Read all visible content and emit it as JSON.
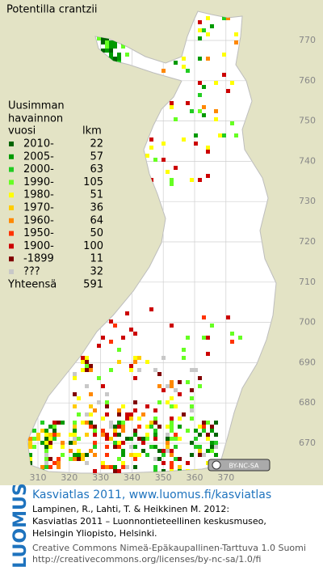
{
  "title": "Potentilla crantzii",
  "legend": {
    "heading": [
      "Uusimman",
      "havainnon"
    ],
    "col_year": "vuosi",
    "col_count": "lkm",
    "items": [
      {
        "label": "2010-",
        "count": 22,
        "color": "#006400"
      },
      {
        "label": "2005-",
        "count": 57,
        "color": "#009a00"
      },
      {
        "label": "2000-",
        "count": 63,
        "color": "#22cc22"
      },
      {
        "label": "1990-",
        "count": 105,
        "color": "#66ff22"
      },
      {
        "label": "1980-",
        "count": 51,
        "color": "#ffff00"
      },
      {
        "label": "1970-",
        "count": 36,
        "color": "#ffcc00"
      },
      {
        "label": "1960-",
        "count": 64,
        "color": "#ff8800"
      },
      {
        "label": "1950-",
        "count": 50,
        "color": "#ff3300"
      },
      {
        "label": "1900-",
        "count": 100,
        "color": "#cc0000"
      },
      {
        "label": "-1899",
        "count": 11,
        "color": "#800000"
      },
      {
        "label": "???",
        "count": 32,
        "color": "#c8c8c8"
      }
    ],
    "total_label": "Yhteensä",
    "total": 591
  },
  "grid": {
    "xticks": [
      310,
      320,
      330,
      340,
      350,
      360,
      370
    ],
    "yticks": [
      670,
      680,
      690,
      700,
      710,
      720,
      730,
      740,
      750,
      760,
      770
    ]
  },
  "badge": "BY-NC-SA",
  "footer": {
    "logo": "LUOMUS",
    "headline": "Kasviatlas 2011, www.luomus.fi/kasviatlas",
    "citation": [
      "Lampinen, R., Lahti, T. & Heikkinen M. 2012:",
      "Kasviatlas 2011 – Luonnontieteellinen keskusmuseo,",
      "Helsingin Yliopisto, Helsinki."
    ],
    "license": [
      "Creative Commons Nimeä-Epäkaupallinen-Tarttuva 1.0 Suomi",
      "http://creativecommons.org/licenses/by-nc-sa/1.0/fi"
    ]
  }
}
